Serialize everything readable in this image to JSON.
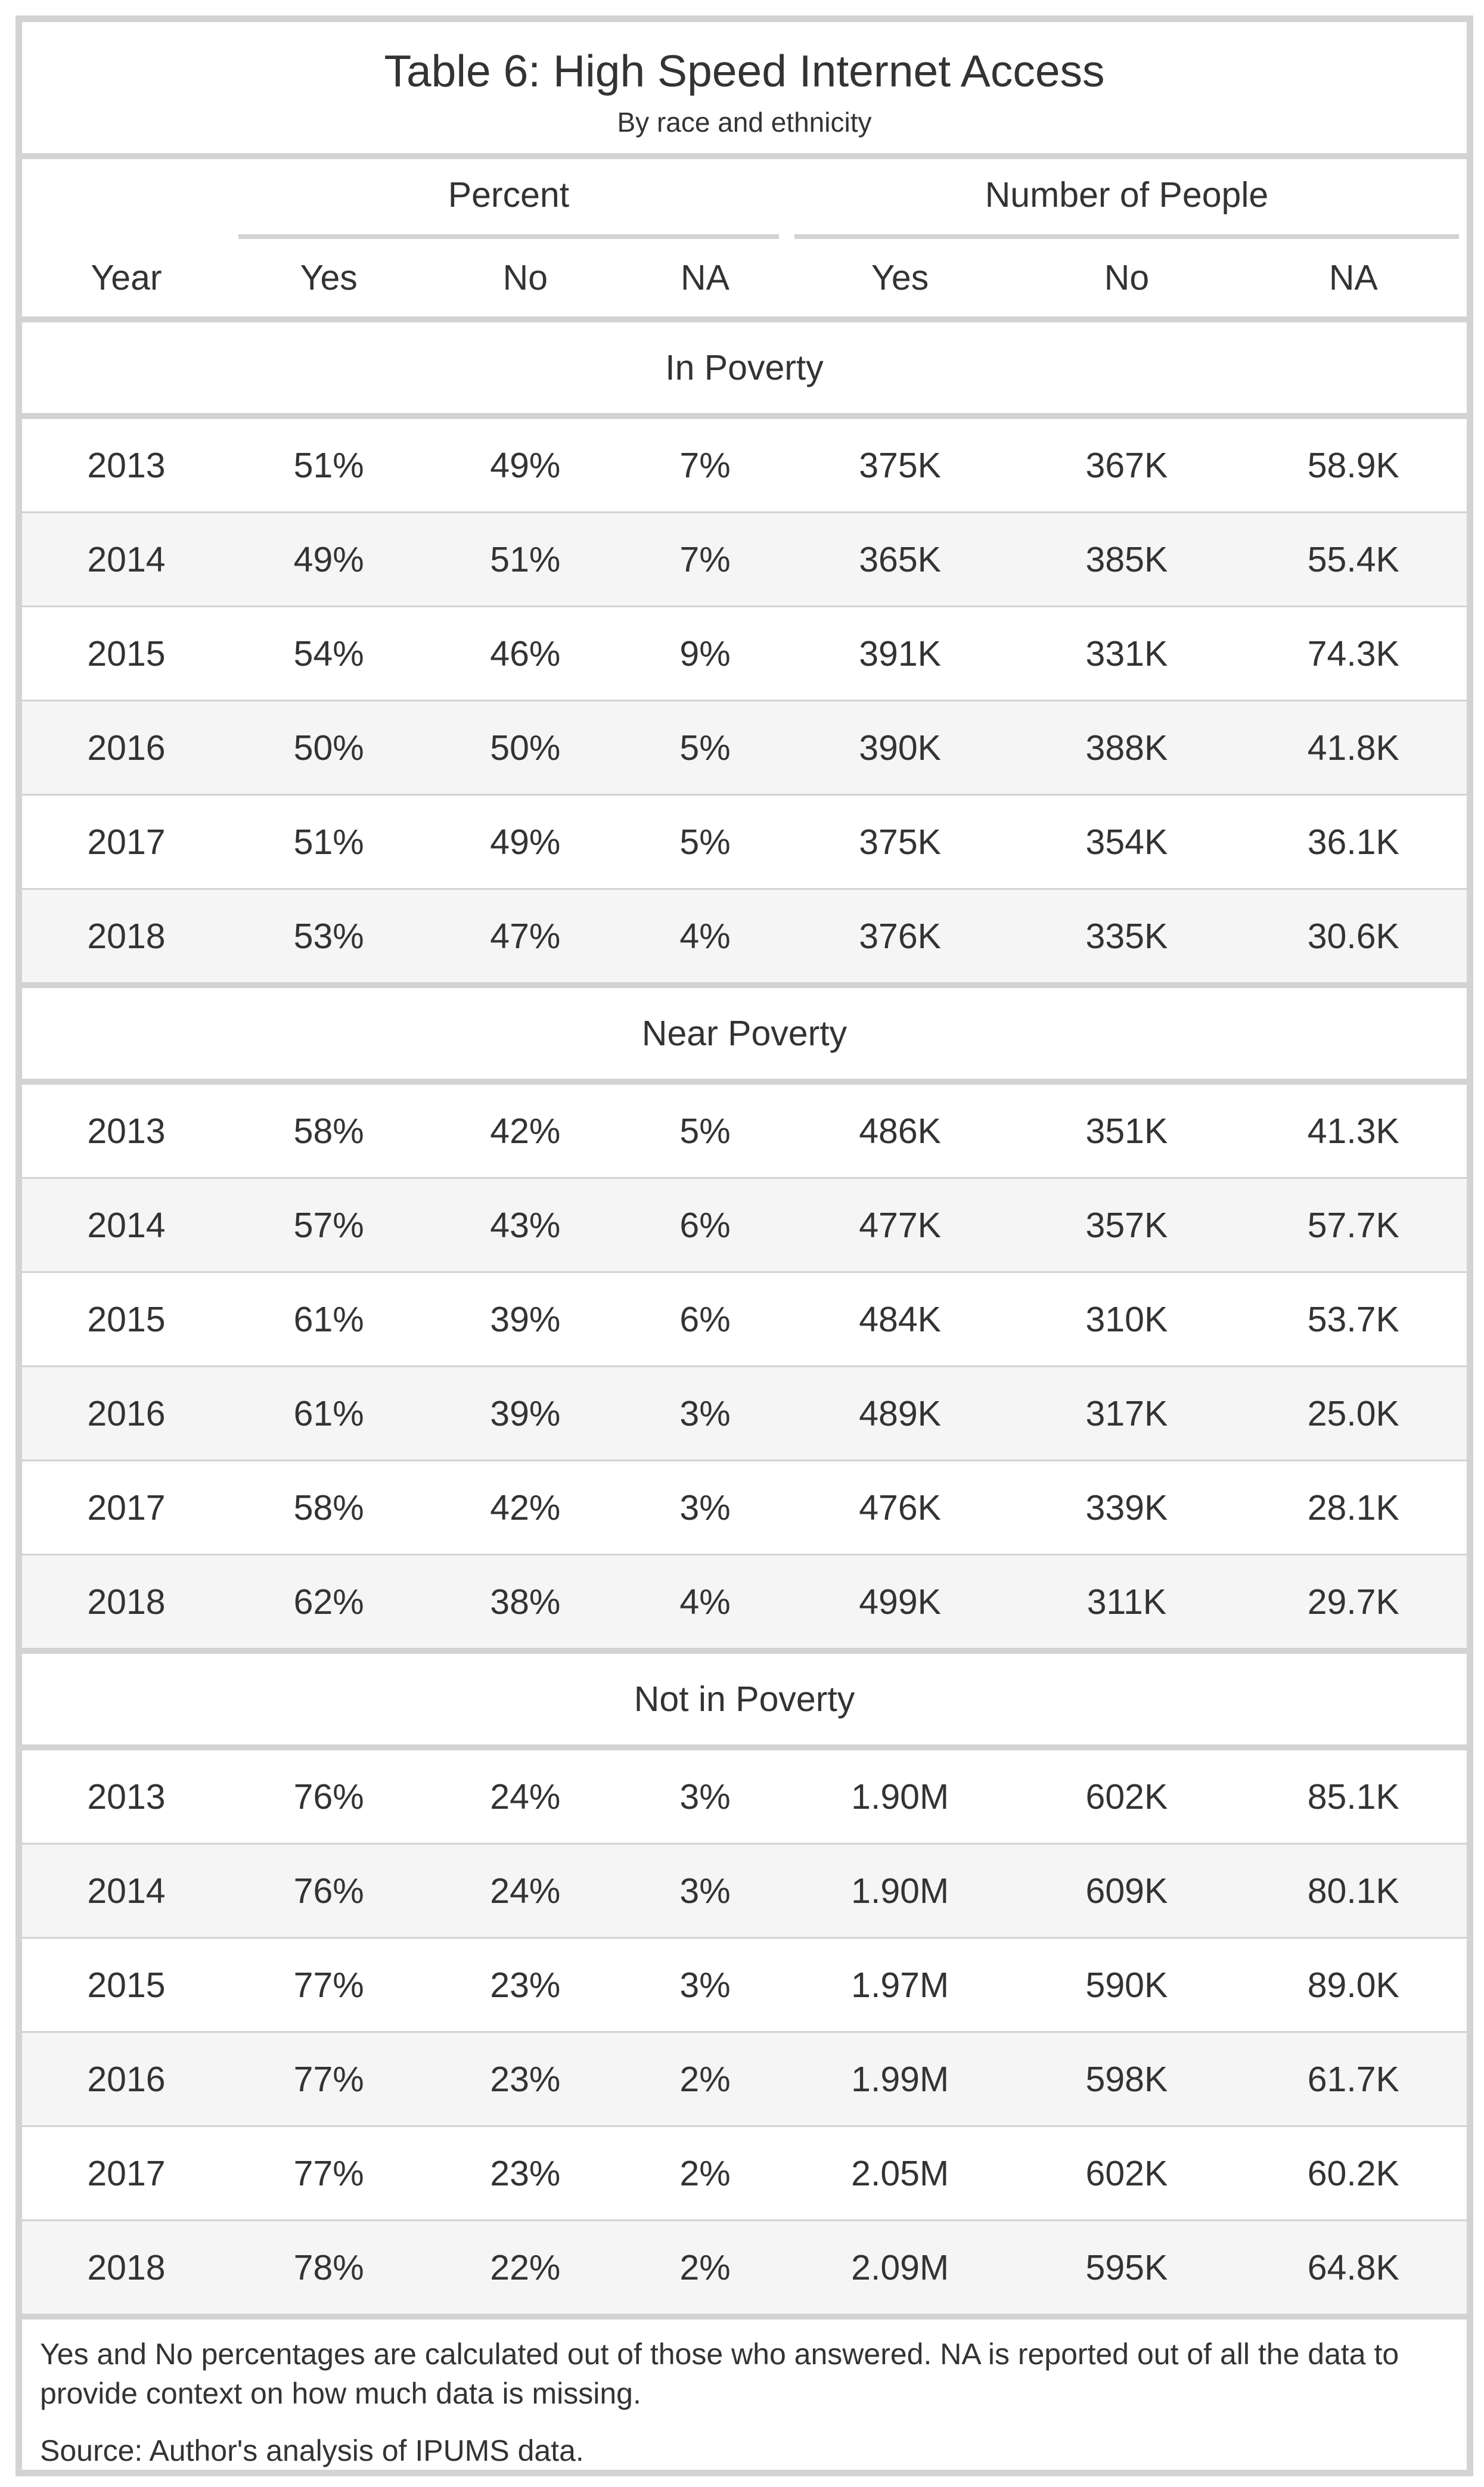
{
  "chart_data": {
    "type": "table",
    "title": "Table 6: High Speed Internet Access",
    "subtitle": "By race and ethnicity",
    "spanners": [
      "Percent",
      "Number of People"
    ],
    "columns": [
      "Year",
      "Yes",
      "No",
      "NA",
      "Yes",
      "No",
      "NA"
    ],
    "groups": [
      {
        "label": "In Poverty",
        "rows": [
          [
            "2013",
            "51%",
            "49%",
            "7%",
            "375K",
            "367K",
            "58.9K"
          ],
          [
            "2014",
            "49%",
            "51%",
            "7%",
            "365K",
            "385K",
            "55.4K"
          ],
          [
            "2015",
            "54%",
            "46%",
            "9%",
            "391K",
            "331K",
            "74.3K"
          ],
          [
            "2016",
            "50%",
            "50%",
            "5%",
            "390K",
            "388K",
            "41.8K"
          ],
          [
            "2017",
            "51%",
            "49%",
            "5%",
            "375K",
            "354K",
            "36.1K"
          ],
          [
            "2018",
            "53%",
            "47%",
            "4%",
            "376K",
            "335K",
            "30.6K"
          ]
        ]
      },
      {
        "label": "Near Poverty",
        "rows": [
          [
            "2013",
            "58%",
            "42%",
            "5%",
            "486K",
            "351K",
            "41.3K"
          ],
          [
            "2014",
            "57%",
            "43%",
            "6%",
            "477K",
            "357K",
            "57.7K"
          ],
          [
            "2015",
            "61%",
            "39%",
            "6%",
            "484K",
            "310K",
            "53.7K"
          ],
          [
            "2016",
            "61%",
            "39%",
            "3%",
            "489K",
            "317K",
            "25.0K"
          ],
          [
            "2017",
            "58%",
            "42%",
            "3%",
            "476K",
            "339K",
            "28.1K"
          ],
          [
            "2018",
            "62%",
            "38%",
            "4%",
            "499K",
            "311K",
            "29.7K"
          ]
        ]
      },
      {
        "label": "Not in Poverty",
        "rows": [
          [
            "2013",
            "76%",
            "24%",
            "3%",
            "1.90M",
            "602K",
            "85.1K"
          ],
          [
            "2014",
            "76%",
            "24%",
            "3%",
            "1.90M",
            "609K",
            "80.1K"
          ],
          [
            "2015",
            "77%",
            "23%",
            "3%",
            "1.97M",
            "590K",
            "89.0K"
          ],
          [
            "2016",
            "77%",
            "23%",
            "2%",
            "1.99M",
            "598K",
            "61.7K"
          ],
          [
            "2017",
            "77%",
            "23%",
            "2%",
            "2.05M",
            "602K",
            "60.2K"
          ],
          [
            "2018",
            "78%",
            "22%",
            "2%",
            "2.09M",
            "595K",
            "64.8K"
          ]
        ]
      }
    ],
    "footnote": "Yes and No percentages are calculated out of those who answered. NA is reported out of all the data to provide context on how much data is missing.",
    "source": "Source: Author's analysis of IPUMS data."
  }
}
